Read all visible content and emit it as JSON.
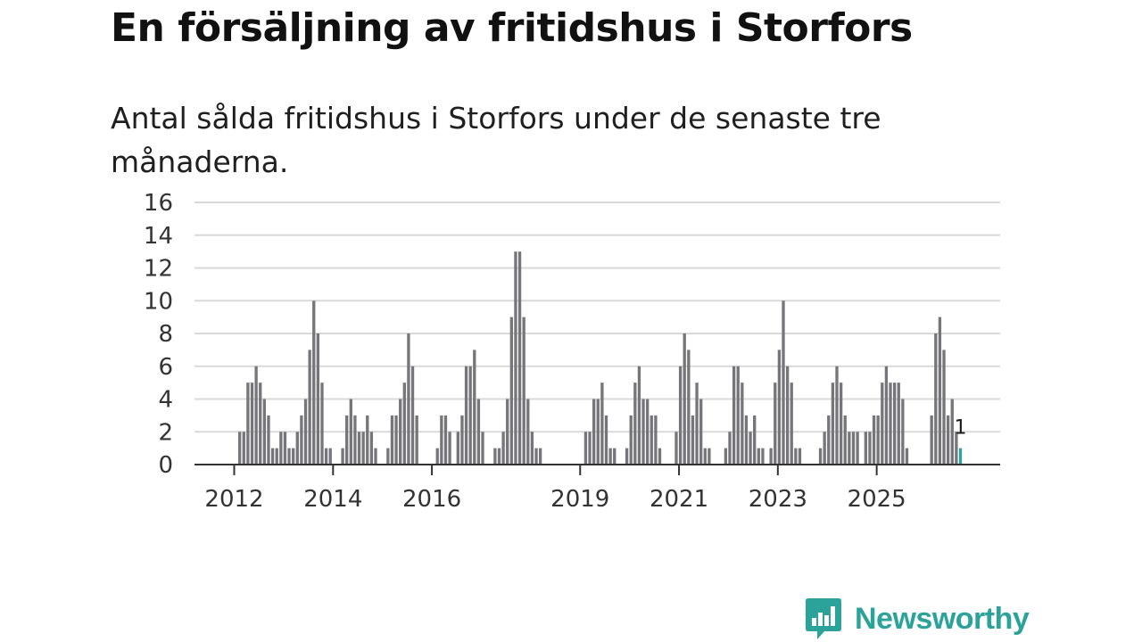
{
  "title": "En försäljning av fritidshus i Storfors",
  "subtitle": "Antal sålda fritidshus i Storfors under de senaste tre månaderna.",
  "brand": {
    "name": "Newsworthy",
    "logo_icon": "newsworthy-bar-logo-icon"
  },
  "colors": {
    "bar": "#76767a",
    "highlight": "#2ba39a",
    "grid": "#d9d9d9",
    "axis": "#333333"
  },
  "chart_data": {
    "type": "bar",
    "title": "En försäljning av fritidshus i Storfors",
    "xlabel": "",
    "ylabel": "",
    "ylim": [
      0,
      16
    ],
    "yticks": [
      0,
      2,
      4,
      6,
      8,
      10,
      12,
      14,
      16
    ],
    "xtick_labels": [
      "2012",
      "2014",
      "2016",
      "2019",
      "2021",
      "2023",
      "2025"
    ],
    "series": [
      {
        "name": "Antal sålda fritidshus (rullande tre månader)",
        "values": [
          0,
          0,
          0,
          0,
          0,
          0,
          0,
          0,
          0,
          0,
          2,
          2,
          5,
          5,
          6,
          5,
          4,
          3,
          1,
          1,
          2,
          2,
          1,
          1,
          2,
          3,
          4,
          7,
          10,
          8,
          5,
          1,
          1,
          0,
          0,
          1,
          3,
          4,
          3,
          2,
          2,
          3,
          2,
          1,
          0,
          0,
          1,
          3,
          3,
          4,
          5,
          8,
          6,
          3,
          0,
          0,
          0,
          0,
          1,
          3,
          3,
          2,
          0,
          2,
          3,
          6,
          6,
          7,
          4,
          2,
          0,
          0,
          1,
          1,
          2,
          4,
          9,
          13,
          13,
          9,
          4,
          2,
          1,
          1,
          0,
          0,
          0,
          0,
          0,
          0,
          0,
          0,
          0,
          0,
          2,
          2,
          4,
          4,
          5,
          3,
          1,
          1,
          0,
          0,
          1,
          3,
          5,
          6,
          4,
          4,
          3,
          3,
          1,
          0,
          0,
          0,
          2,
          6,
          8,
          7,
          3,
          5,
          4,
          1,
          1,
          0,
          0,
          0,
          1,
          2,
          6,
          6,
          5,
          3,
          2,
          3,
          1,
          1,
          0,
          1,
          5,
          7,
          10,
          6,
          5,
          1,
          1,
          0,
          0,
          0,
          0,
          1,
          2,
          3,
          5,
          6,
          5,
          3,
          2,
          2,
          2,
          0,
          2,
          2,
          3,
          3,
          5,
          6,
          5,
          5,
          5,
          4,
          1,
          0,
          0,
          0,
          0,
          0,
          3,
          8,
          9,
          7,
          3,
          4,
          2,
          1
        ]
      }
    ],
    "highlight": {
      "value": 1,
      "label": "1"
    }
  }
}
